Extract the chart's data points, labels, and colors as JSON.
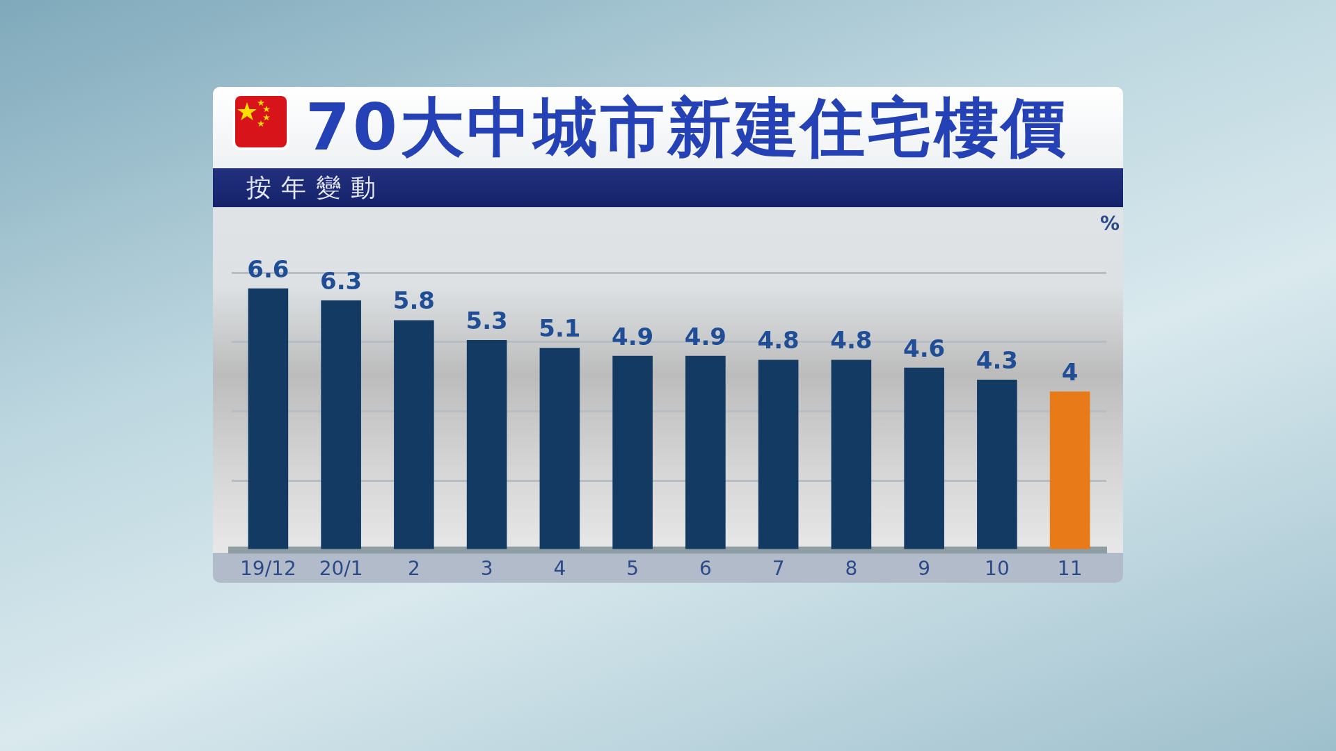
{
  "chart_data": {
    "type": "bar",
    "title": "70大中城市新建住宅樓價",
    "subtitle": "按年變動",
    "ylabel": "%",
    "categories": [
      "19/12",
      "20/1",
      "2",
      "3",
      "4",
      "5",
      "6",
      "7",
      "8",
      "9",
      "10",
      "11"
    ],
    "values": [
      6.6,
      6.3,
      5.8,
      5.3,
      5.1,
      4.9,
      4.9,
      4.8,
      4.8,
      4.6,
      4.3,
      4
    ],
    "colors": [
      "#123a63",
      "#123a63",
      "#123a63",
      "#123a63",
      "#123a63",
      "#123a63",
      "#123a63",
      "#123a63",
      "#123a63",
      "#123a63",
      "#123a63",
      "#e87b17"
    ],
    "ylim": [
      0,
      7
    ],
    "yticks": [
      {
        "value": 0,
        "label": null
      },
      {
        "value": 1.75,
        "label": null
      },
      {
        "value": 3.5,
        "label": null
      },
      {
        "value": 5.25,
        "label": null
      },
      {
        "value": 7,
        "label": null
      }
    ],
    "grid": "y",
    "tick_labels": "x",
    "data_labels": true
  }
}
